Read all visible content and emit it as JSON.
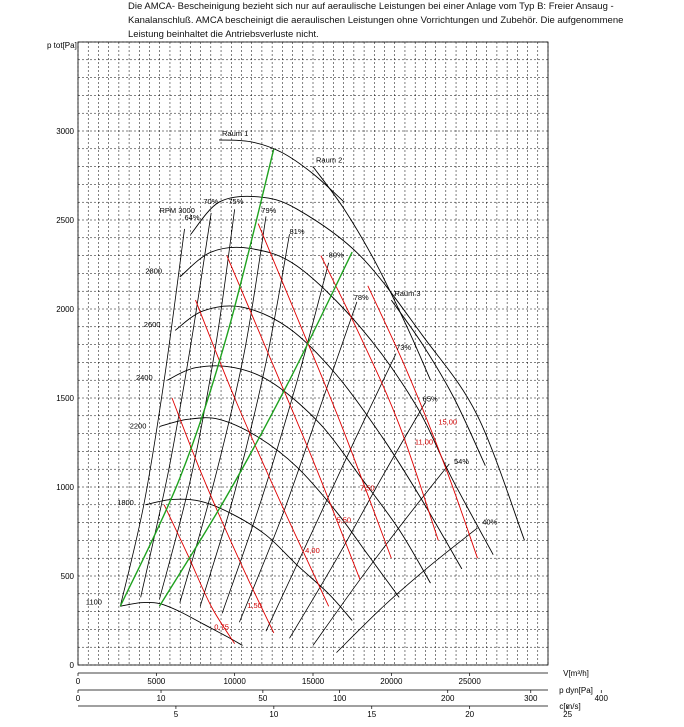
{
  "note": {
    "line1": "Die AMCA- Bescheinigung bezieht sich nur auf aeraulische Leistungen bei einer Anlage vom Typ B: Freier Ansaug -",
    "line2": "Kanalanschluß. AMCA bescheinigt die aeraulischen Leistungen ohne Vorrichtungen und Zubehör. Die aufgenommene",
    "line3": "Leistung beinhaltet die Antriebsverluste nicht."
  },
  "chart_data": {
    "type": "line",
    "ylabel": "p tot[Pa]",
    "xlabel": "V[m³/h]",
    "x2label": "p dyn[Pa]",
    "x3label": "c[m/s]",
    "xlim": [
      0,
      30000
    ],
    "ylim": [
      0,
      3500
    ],
    "grid": true,
    "y_ticks": [
      "0",
      "500",
      "1000",
      "1500",
      "2000",
      "2500",
      "3000"
    ],
    "x_ticks": [
      "0",
      "5000",
      "10000",
      "15000",
      "20000",
      "25000"
    ],
    "pdyn_ticks": [
      {
        "label": "0",
        "v": 0
      },
      {
        "label": "10",
        "v": 5300
      },
      {
        "label": "50",
        "v": 11800
      },
      {
        "label": "100",
        "v": 16700
      },
      {
        "label": "200",
        "v": 23600
      },
      {
        "label": "300",
        "v": 28900
      },
      {
        "label": "400",
        "v": 33400
      }
    ],
    "c_ticks": [
      {
        "label": "5",
        "v": 6250
      },
      {
        "label": "10",
        "v": 12500
      },
      {
        "label": "15",
        "v": 18750
      },
      {
        "label": "20",
        "v": 25000
      },
      {
        "label": "25",
        "v": 31250
      }
    ],
    "system_curves": [
      {
        "name": "Raum 1",
        "points": [
          [
            9000,
            2950
          ],
          [
            11000,
            2940
          ],
          [
            13000,
            2880
          ],
          [
            15000,
            2760
          ],
          [
            17000,
            2600
          ]
        ]
      },
      {
        "name": "Raum 2",
        "points": [
          [
            15000,
            2800
          ],
          [
            17000,
            2560
          ],
          [
            19000,
            2260
          ],
          [
            21000,
            1900
          ],
          [
            22500,
            1600
          ]
        ]
      },
      {
        "name": "Raum 3",
        "points": [
          [
            20000,
            2050
          ],
          [
            22000,
            1800
          ],
          [
            24000,
            1500
          ],
          [
            26000,
            1120
          ]
        ]
      }
    ],
    "rpm_curves": [
      {
        "label": "RPM 3000",
        "label_x": 5200,
        "label_y": 2540,
        "points": [
          [
            7200,
            2420
          ],
          [
            9000,
            2600
          ],
          [
            11500,
            2630
          ],
          [
            14000,
            2560
          ],
          [
            18000,
            2300
          ],
          [
            22000,
            1850
          ],
          [
            25500,
            1400
          ],
          [
            28500,
            700
          ]
        ]
      },
      {
        "label": "2800",
        "label_x": 4300,
        "label_y": 2200,
        "points": [
          [
            6500,
            2180
          ],
          [
            8500,
            2320
          ],
          [
            11000,
            2340
          ],
          [
            14000,
            2240
          ],
          [
            18000,
            1900
          ],
          [
            21500,
            1470
          ],
          [
            23800,
            1060
          ],
          [
            26500,
            620
          ]
        ]
      },
      {
        "label": "2600",
        "label_x": 4200,
        "label_y": 1900,
        "points": [
          [
            6200,
            1880
          ],
          [
            8000,
            1990
          ],
          [
            10500,
            2010
          ],
          [
            13500,
            1890
          ],
          [
            16500,
            1630
          ],
          [
            19500,
            1270
          ],
          [
            22000,
            920
          ],
          [
            24500,
            540
          ]
        ]
      },
      {
        "label": "2400",
        "label_x": 3700,
        "label_y": 1600,
        "points": [
          [
            5700,
            1600
          ],
          [
            7500,
            1670
          ],
          [
            10000,
            1670
          ],
          [
            12500,
            1580
          ],
          [
            15500,
            1350
          ],
          [
            18000,
            1060
          ],
          [
            20500,
            760
          ],
          [
            22500,
            460
          ]
        ]
      },
      {
        "label": "2200",
        "label_x": 3300,
        "label_y": 1330,
        "points": [
          [
            5200,
            1340
          ],
          [
            7000,
            1380
          ],
          [
            9000,
            1380
          ],
          [
            11500,
            1280
          ],
          [
            14000,
            1110
          ],
          [
            16500,
            860
          ],
          [
            18500,
            620
          ],
          [
            20500,
            380
          ]
        ]
      },
      {
        "label": "1800",
        "label_x": 2500,
        "label_y": 900,
        "points": [
          [
            4300,
            900
          ],
          [
            6000,
            930
          ],
          [
            7800,
            920
          ],
          [
            9800,
            850
          ],
          [
            12000,
            730
          ],
          [
            14000,
            560
          ],
          [
            16000,
            400
          ],
          [
            17500,
            250
          ]
        ]
      },
      {
        "label": "1100",
        "label_x": 500,
        "label_y": 340,
        "points": [
          [
            2700,
            330
          ],
          [
            4000,
            350
          ],
          [
            5200,
            345
          ],
          [
            6500,
            300
          ],
          [
            8000,
            230
          ],
          [
            9500,
            160
          ],
          [
            10500,
            110
          ]
        ]
      }
    ],
    "efficiency_curves": [
      {
        "label": "64%",
        "label_x": 6800,
        "label_y": 2500,
        "points": [
          [
            6800,
            2450
          ],
          [
            5500,
            1600
          ],
          [
            4200,
            900
          ],
          [
            2700,
            330
          ]
        ]
      },
      {
        "label": "70%",
        "label_x": 8000,
        "label_y": 2590,
        "points": [
          [
            8500,
            2540
          ],
          [
            7200,
            1800
          ],
          [
            5800,
            1100
          ],
          [
            4000,
            380
          ]
        ]
      },
      {
        "label": "75%",
        "label_x": 9600,
        "label_y": 2590,
        "points": [
          [
            10000,
            2560
          ],
          [
            8800,
            1800
          ],
          [
            7200,
            1050
          ],
          [
            5200,
            370
          ]
        ]
      },
      {
        "label": "79%",
        "label_x": 11700,
        "label_y": 2540,
        "points": [
          [
            12000,
            2520
          ],
          [
            10600,
            1750
          ],
          [
            8600,
            1000
          ],
          [
            6500,
            350
          ]
        ]
      },
      {
        "label": "81%",
        "label_x": 13500,
        "label_y": 2420,
        "points": [
          [
            13500,
            2420
          ],
          [
            12000,
            1700
          ],
          [
            10000,
            970
          ],
          [
            7800,
            330
          ]
        ]
      },
      {
        "label": "80%",
        "label_x": 16000,
        "label_y": 2290,
        "points": [
          [
            16000,
            2260
          ],
          [
            14000,
            1600
          ],
          [
            11600,
            900
          ],
          [
            9200,
            290
          ]
        ]
      },
      {
        "label": "78%",
        "label_x": 17600,
        "label_y": 2050,
        "points": [
          [
            17800,
            2040
          ],
          [
            15500,
            1460
          ],
          [
            13000,
            830
          ],
          [
            10300,
            240
          ]
        ]
      },
      {
        "label": "73%",
        "label_x": 20300,
        "label_y": 1770,
        "points": [
          [
            20300,
            1750
          ],
          [
            17700,
            1270
          ],
          [
            14800,
            720
          ],
          [
            12000,
            190
          ]
        ]
      },
      {
        "label": "65%",
        "label_x": 22000,
        "label_y": 1480,
        "points": [
          [
            22200,
            1480
          ],
          [
            19500,
            1070
          ],
          [
            16600,
            610
          ],
          [
            13500,
            150
          ]
        ]
      },
      {
        "label": "54%",
        "label_x": 24000,
        "label_y": 1130,
        "points": [
          [
            23700,
            1130
          ],
          [
            21000,
            830
          ],
          [
            18000,
            480
          ],
          [
            15000,
            110
          ]
        ]
      },
      {
        "label": "40%",
        "label_x": 25800,
        "label_y": 790,
        "points": [
          [
            25500,
            770
          ],
          [
            22500,
            560
          ],
          [
            19500,
            330
          ],
          [
            16500,
            70
          ]
        ]
      }
    ],
    "power_curves": [
      {
        "label": "0,75",
        "label_x": 8700,
        "label_y": 200,
        "points": [
          [
            5500,
            900
          ],
          [
            7000,
            620
          ],
          [
            8500,
            330
          ],
          [
            10000,
            120
          ]
        ]
      },
      {
        "label": "1,50",
        "label_x": 10800,
        "label_y": 320,
        "points": [
          [
            6000,
            1500
          ],
          [
            8000,
            1050
          ],
          [
            10500,
            550
          ],
          [
            12500,
            180
          ]
        ]
      },
      {
        "label": "4,00",
        "label_x": 14500,
        "label_y": 630,
        "points": [
          [
            7500,
            2050
          ],
          [
            10000,
            1500
          ],
          [
            13000,
            900
          ],
          [
            16000,
            330
          ]
        ]
      },
      {
        "label": "5,50",
        "label_x": 16500,
        "label_y": 800,
        "points": [
          [
            9500,
            2300
          ],
          [
            12000,
            1780
          ],
          [
            15000,
            1150
          ],
          [
            18000,
            480
          ]
        ]
      },
      {
        "label": "7,50",
        "label_x": 18000,
        "label_y": 980,
        "points": [
          [
            11500,
            2480
          ],
          [
            14000,
            1950
          ],
          [
            16800,
            1350
          ],
          [
            20000,
            600
          ]
        ]
      },
      {
        "label": "11,00",
        "label_x": 21500,
        "label_y": 1240,
        "points": [
          [
            15500,
            2300
          ],
          [
            18000,
            1850
          ],
          [
            20500,
            1350
          ],
          [
            23000,
            700
          ]
        ]
      },
      {
        "label": "15,00",
        "label_x": 23000,
        "label_y": 1350,
        "points": [
          [
            18500,
            2130
          ],
          [
            21000,
            1650
          ],
          [
            23500,
            1100
          ],
          [
            25500,
            600
          ]
        ]
      }
    ],
    "green_curves": [
      {
        "points": [
          [
            2700,
            330
          ],
          [
            6500,
            1050
          ],
          [
            9500,
            1850
          ],
          [
            12500,
            2900
          ]
        ]
      },
      {
        "points": [
          [
            5200,
            330
          ],
          [
            9500,
            950
          ],
          [
            13500,
            1600
          ],
          [
            17500,
            2320
          ]
        ]
      }
    ]
  }
}
